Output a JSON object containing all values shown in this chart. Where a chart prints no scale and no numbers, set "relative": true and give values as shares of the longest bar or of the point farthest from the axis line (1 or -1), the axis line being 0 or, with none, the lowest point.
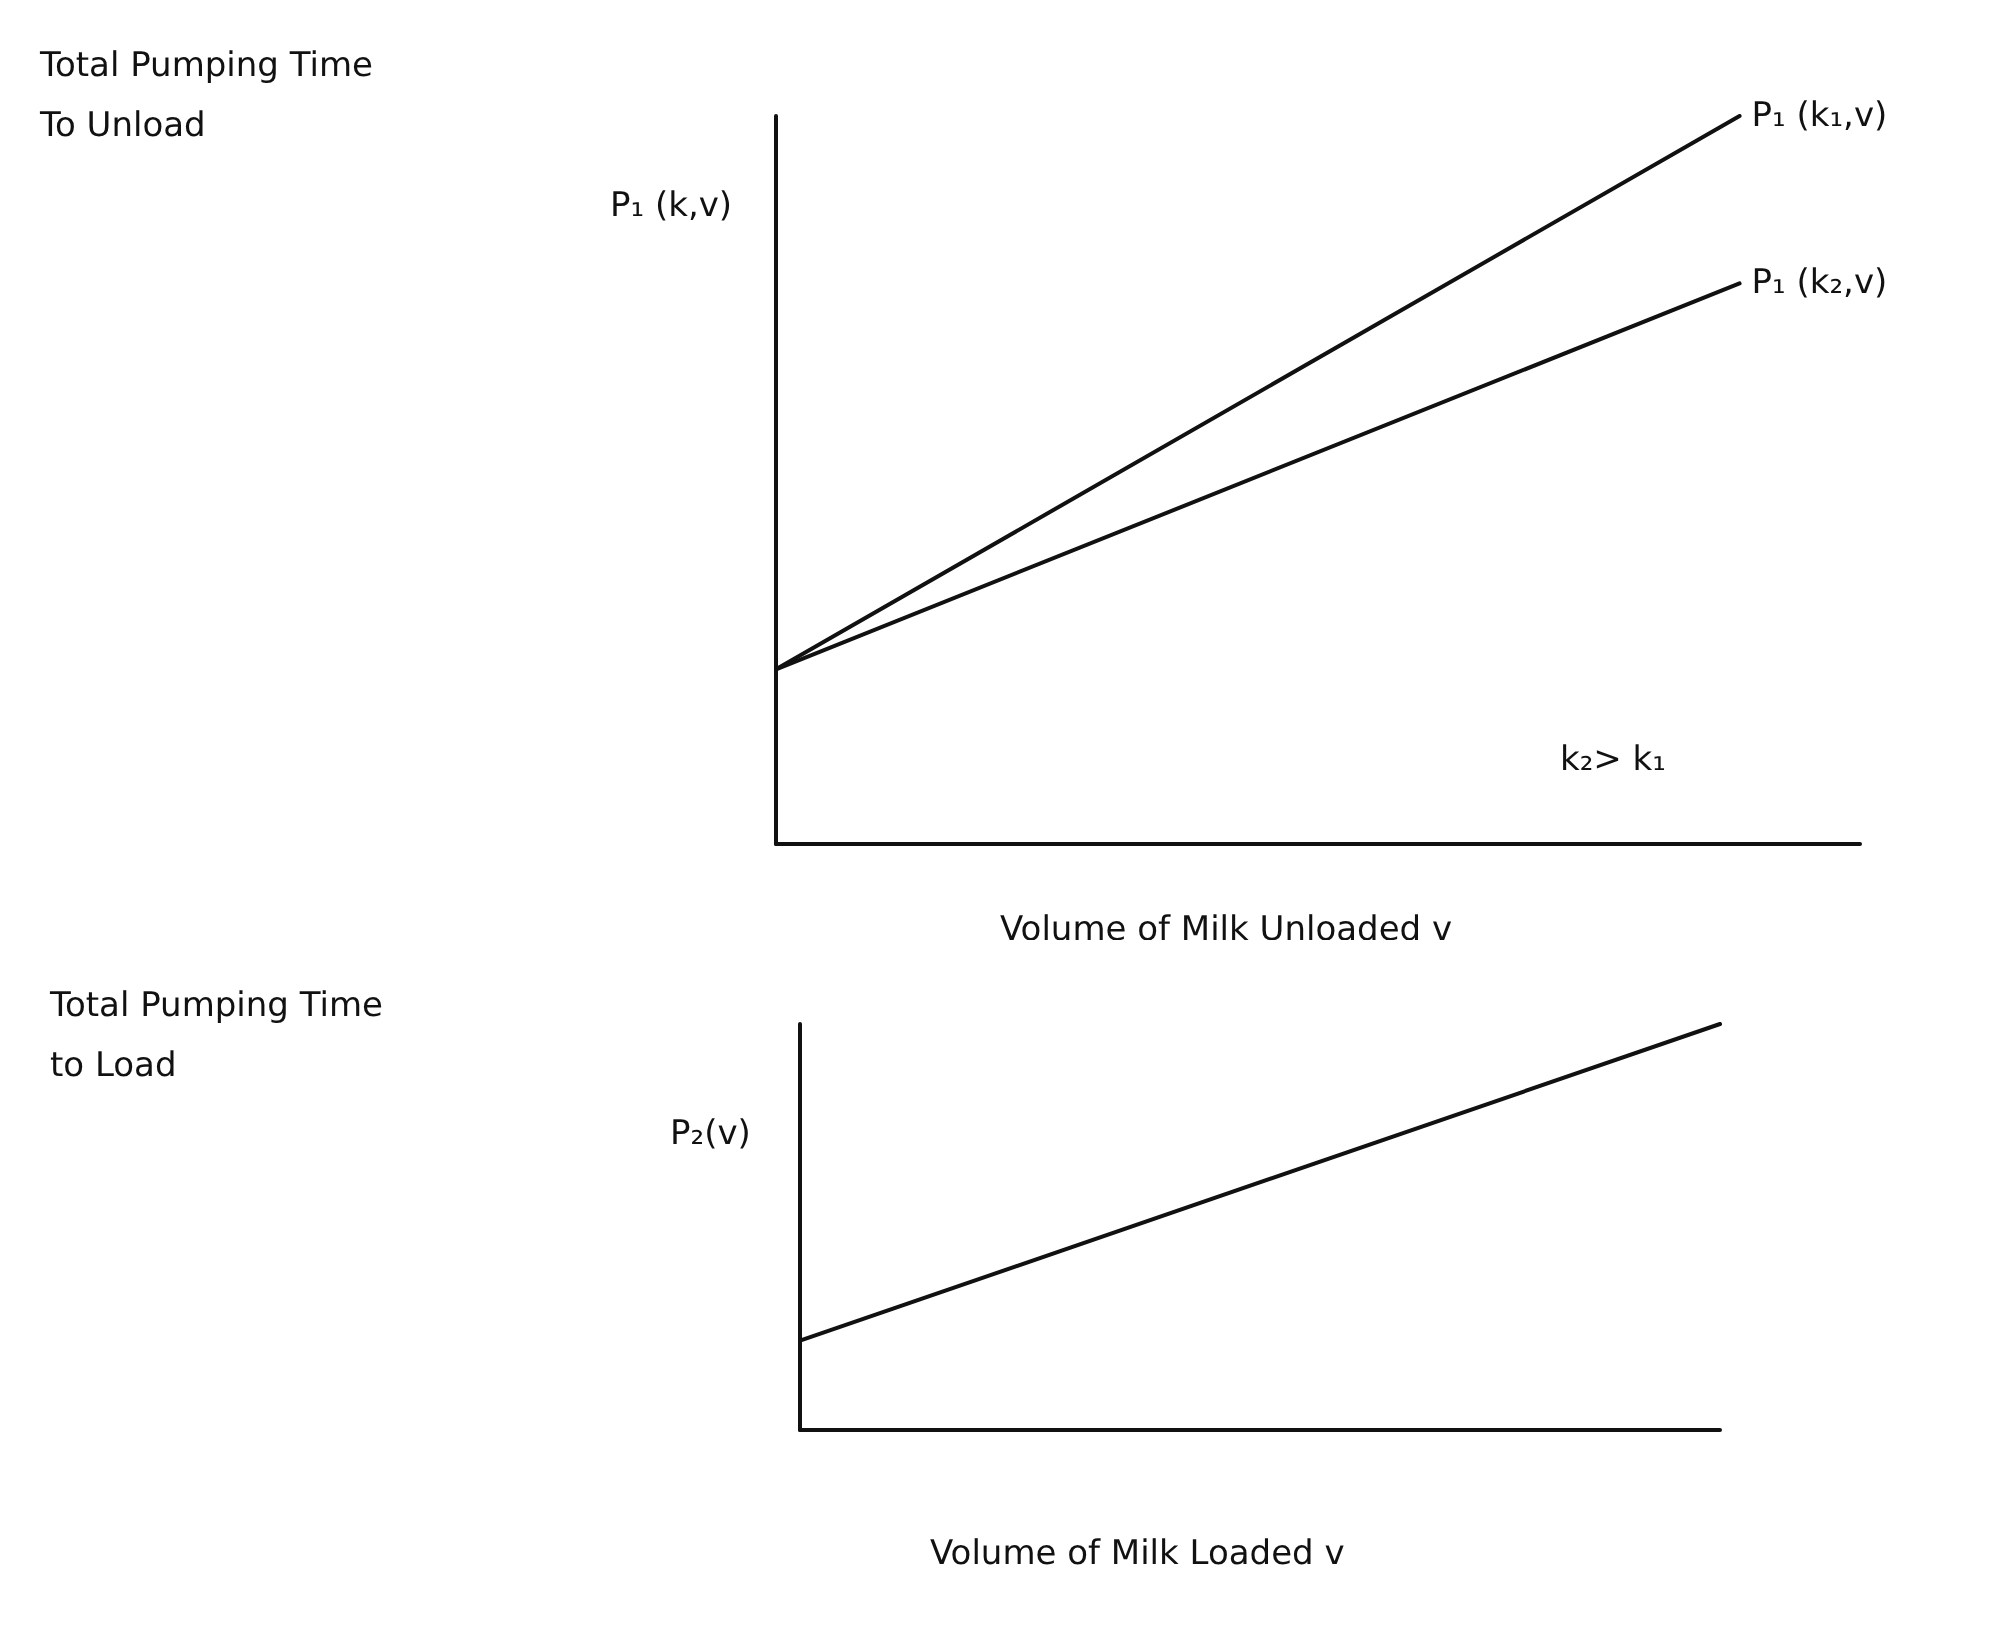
{
  "chart_data": [
    {
      "type": "line",
      "relative": true,
      "ylabel": "Total Pumping Time\nTo Unload",
      "xlabel": "Volume of Milk Unloaded v",
      "categories": [
        null,
        null,
        null,
        null,
        null,
        null,
        null,
        null,
        null,
        null
      ],
      "series": [
        {
          "name": "P₁ (k₁,v)",
          "color": "#111111",
          "values": [
            0.24,
            null,
            null,
            null,
            null,
            null,
            null,
            null,
            1,
            null
          ]
        },
        {
          "name": "P₁ (k₂,v)",
          "color": "#111111",
          "values": [
            0.24,
            null,
            null,
            null,
            null,
            null,
            null,
            null,
            0.77,
            null
          ]
        }
      ],
      "annotations": [
        "P₁ (k,v)",
        "k₂> k₁"
      ],
      "marker": "none",
      "line_style": "solid",
      "grid": false,
      "legend": false
    },
    {
      "type": "line",
      "relative": true,
      "ylabel": "Total Pumping Time\nto Load",
      "xlabel": "Volume of Milk Loaded v",
      "categories": [
        null,
        null
      ],
      "series": [
        {
          "color": "#111111",
          "values": [
            0.22,
            1
          ]
        }
      ],
      "annotations": [
        "P₂(v)"
      ],
      "marker": "none",
      "line_style": "solid",
      "grid": false,
      "legend": false
    }
  ]
}
